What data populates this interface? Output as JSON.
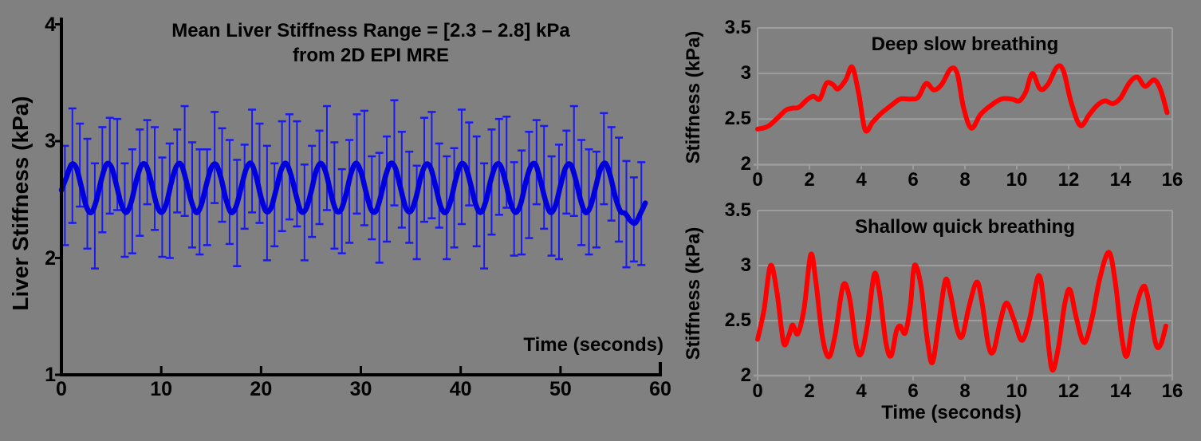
{
  "page": {
    "background": "#808080"
  },
  "colors": {
    "blue_line": "#0000dd",
    "blue_errorbar": "#1a1af0",
    "red_line": "#ff0000",
    "axis_black": "#000000",
    "grid_gray": "#9d9d9d",
    "text_black": "#000000"
  },
  "chart_data": [
    {
      "id": "liver-stiffness-mre",
      "type": "line",
      "title_line1": "Mean Liver Stiffness Range = [2.3 – 2.8] kPa",
      "title_line2": "from 2D EPI MRE",
      "ylabel": "Liver Stiffness (kPa)",
      "xlabel": "Time (seconds)",
      "xlim": [
        0,
        60
      ],
      "ylim": [
        1,
        4
      ],
      "xticks": [
        "0",
        "10",
        "20",
        "30",
        "40",
        "50",
        "60"
      ],
      "yticks": [
        "4",
        "3",
        "2",
        "1"
      ],
      "grid": false,
      "legend": "none",
      "series": [
        {
          "name": "mean liver stiffness",
          "style": "thick smooth line with error bars",
          "t_start": 0,
          "dt": 0.5,
          "values": [
            2.58,
            2.69,
            2.8,
            2.77,
            2.61,
            2.44,
            2.39,
            2.49,
            2.67,
            2.8,
            2.78,
            2.63,
            2.46,
            2.39,
            2.48,
            2.66,
            2.79,
            2.79,
            2.65,
            2.47,
            2.39,
            2.46,
            2.64,
            2.78,
            2.8,
            2.66,
            2.49,
            2.39,
            2.45,
            2.62,
            2.77,
            2.8,
            2.68,
            2.5,
            2.39,
            2.44,
            2.6,
            2.76,
            2.81,
            2.7,
            2.52,
            2.4,
            2.43,
            2.58,
            2.75,
            2.81,
            2.71,
            2.54,
            2.4,
            2.42,
            2.56,
            2.74,
            2.81,
            2.73,
            2.55,
            2.41,
            2.41,
            2.54,
            2.72,
            2.81,
            2.74,
            2.57,
            2.42,
            2.4,
            2.53,
            2.71,
            2.81,
            2.76,
            2.59,
            2.43,
            2.4,
            2.51,
            2.69,
            2.8,
            2.77,
            2.61,
            2.44,
            2.39,
            2.49,
            2.67,
            2.8,
            2.78,
            2.63,
            2.46,
            2.39,
            2.48,
            2.66,
            2.79,
            2.79,
            2.65,
            2.47,
            2.39,
            2.46,
            2.64,
            2.78,
            2.8,
            2.66,
            2.49,
            2.39,
            2.45,
            2.62,
            2.77,
            2.8,
            2.68,
            2.5,
            2.39,
            2.44,
            2.6,
            2.76,
            2.81,
            2.7,
            2.52,
            2.4,
            2.38,
            2.32,
            2.3,
            2.38,
            2.47
          ]
        }
      ],
      "error_bars": {
        "t_start": 0.35,
        "dt": 0.75,
        "mean": [
          2.51,
          2.76,
          2.77,
          2.52,
          2.39,
          2.58,
          2.8,
          2.71,
          2.46,
          2.42,
          2.66,
          2.81,
          2.65,
          2.41,
          2.46,
          2.72,
          2.8,
          2.57,
          2.39,
          2.53,
          2.77,
          2.76,
          2.5,
          2.4,
          2.6,
          2.8,
          2.7,
          2.44,
          2.43,
          2.67,
          2.81,
          2.63,
          2.4,
          2.48,
          2.74,
          2.79,
          2.55,
          2.39,
          2.54,
          2.78,
          2.74,
          2.49,
          2.4,
          2.62,
          2.81,
          2.68,
          2.43,
          2.44,
          2.69,
          2.81,
          2.61,
          2.4,
          2.49,
          2.75,
          2.78,
          2.54,
          2.39,
          2.56,
          2.79,
          2.73,
          2.47,
          2.41,
          2.64,
          2.81,
          2.66,
          2.42,
          2.45,
          2.71,
          2.8,
          2.59,
          2.39,
          2.51,
          2.76,
          2.77,
          2.52,
          2.39,
          2.32,
          2.35
        ],
        "up": [
          0.45,
          0.52,
          0.38,
          0.5,
          0.42,
          0.54,
          0.4,
          0.48,
          0.35,
          0.51,
          0.44,
          0.37,
          0.47,
          0.45,
          0.52,
          0.38,
          0.5,
          0.42,
          0.54,
          0.4,
          0.48,
          0.35,
          0.51,
          0.44,
          0.37,
          0.47,
          0.45,
          0.52,
          0.38,
          0.5,
          0.42,
          0.54,
          0.4,
          0.48,
          0.35,
          0.51,
          0.44,
          0.37,
          0.47,
          0.45,
          0.52,
          0.38,
          0.5,
          0.42,
          0.54,
          0.4,
          0.48,
          0.35,
          0.51,
          0.44,
          0.37,
          0.47,
          0.45,
          0.52,
          0.38,
          0.5,
          0.42,
          0.54,
          0.4,
          0.48,
          0.35,
          0.51,
          0.44,
          0.37,
          0.47,
          0.45,
          0.52,
          0.38,
          0.5,
          0.42,
          0.54,
          0.4,
          0.48,
          0.35,
          0.51,
          0.44,
          0.37,
          0.47
        ],
        "dn": [
          0.4,
          0.46,
          0.33,
          0.44,
          0.48,
          0.36,
          0.42,
          0.3,
          0.45,
          0.38,
          0.47,
          0.35,
          0.41,
          0.4,
          0.46,
          0.33,
          0.44,
          0.48,
          0.36,
          0.42,
          0.3,
          0.45,
          0.38,
          0.47,
          0.35,
          0.41,
          0.4,
          0.46,
          0.33,
          0.44,
          0.48,
          0.36,
          0.42,
          0.3,
          0.45,
          0.38,
          0.47,
          0.35,
          0.41,
          0.4,
          0.46,
          0.33,
          0.44,
          0.48,
          0.36,
          0.42,
          0.3,
          0.45,
          0.38,
          0.47,
          0.35,
          0.41,
          0.4,
          0.46,
          0.33,
          0.44,
          0.48,
          0.36,
          0.42,
          0.3,
          0.45,
          0.38,
          0.47,
          0.35,
          0.41,
          0.4,
          0.46,
          0.33,
          0.44,
          0.48,
          0.36,
          0.42,
          0.3,
          0.45,
          0.38,
          0.47,
          0.35,
          0.41
        ]
      }
    },
    {
      "id": "deep-slow-breathing",
      "type": "line",
      "title": "Deep slow breathing",
      "ylabel": "Stiffness (kPa)",
      "xlim": [
        0,
        16
      ],
      "ylim": [
        2,
        3.5
      ],
      "xticks": [
        "0",
        "2",
        "4",
        "6",
        "8",
        "10",
        "12",
        "14",
        "16"
      ],
      "yticks": [
        "3.5",
        "3",
        "2.5",
        "2"
      ],
      "grid": true,
      "legend": "none",
      "series": [
        {
          "name": "stiffness during deep slow breathing",
          "x": [
            0,
            0.4,
            0.8,
            1.1,
            1.35,
            1.6,
            1.9,
            2.15,
            2.4,
            2.65,
            2.9,
            3.1,
            3.4,
            3.65,
            3.9,
            4.15,
            4.45,
            4.8,
            5.2,
            5.5,
            5.9,
            6.2,
            6.5,
            6.8,
            7.1,
            7.45,
            7.7,
            7.95,
            8.25,
            8.6,
            9.0,
            9.4,
            9.8,
            10.1,
            10.35,
            10.6,
            10.9,
            11.2,
            11.55,
            11.8,
            12.1,
            12.45,
            12.8,
            13.1,
            13.4,
            13.7,
            14.0,
            14.35,
            14.65,
            14.95,
            15.3,
            15.55,
            15.8
          ],
          "y": [
            2.39,
            2.42,
            2.52,
            2.6,
            2.62,
            2.63,
            2.71,
            2.75,
            2.72,
            2.89,
            2.88,
            2.83,
            2.93,
            3.07,
            2.78,
            2.38,
            2.47,
            2.57,
            2.66,
            2.72,
            2.72,
            2.74,
            2.89,
            2.82,
            2.88,
            3.05,
            3.0,
            2.62,
            2.4,
            2.55,
            2.65,
            2.72,
            2.72,
            2.7,
            2.8,
            3.0,
            2.83,
            2.88,
            3.07,
            3.03,
            2.68,
            2.43,
            2.55,
            2.65,
            2.7,
            2.67,
            2.73,
            2.9,
            2.96,
            2.86,
            2.93,
            2.82,
            2.57
          ]
        }
      ]
    },
    {
      "id": "shallow-quick-breathing",
      "type": "line",
      "title": "Shallow quick breathing",
      "ylabel": "Stiffness (kPa)",
      "xlabel": "Time (seconds)",
      "xlim": [
        0,
        16
      ],
      "ylim": [
        2,
        3.5
      ],
      "xticks": [
        "0",
        "2",
        "4",
        "6",
        "8",
        "10",
        "12",
        "14",
        "16"
      ],
      "yticks": [
        "3.5",
        "3",
        "2.5",
        "2"
      ],
      "grid": true,
      "legend": "none",
      "series": [
        {
          "name": "stiffness during shallow quick breathing",
          "x": [
            0,
            0.25,
            0.5,
            0.75,
            1.0,
            1.2,
            1.35,
            1.55,
            1.8,
            2.05,
            2.25,
            2.5,
            2.75,
            3.0,
            3.3,
            3.55,
            3.8,
            4.0,
            4.25,
            4.5,
            4.7,
            4.95,
            5.15,
            5.35,
            5.5,
            5.7,
            5.9,
            6.05,
            6.3,
            6.55,
            6.75,
            7.0,
            7.25,
            7.45,
            7.7,
            7.9,
            8.15,
            8.45,
            8.65,
            8.9,
            9.1,
            9.35,
            9.6,
            9.9,
            10.2,
            10.5,
            10.85,
            11.1,
            11.35,
            11.6,
            11.85,
            12.05,
            12.3,
            12.6,
            12.9,
            13.2,
            13.55,
            13.8,
            14.05,
            14.25,
            14.5,
            14.85,
            15.05,
            15.35,
            15.55,
            15.75
          ],
          "y": [
            2.33,
            2.6,
            3.0,
            2.75,
            2.3,
            2.36,
            2.46,
            2.38,
            2.62,
            3.1,
            2.85,
            2.35,
            2.17,
            2.38,
            2.82,
            2.7,
            2.28,
            2.2,
            2.48,
            2.92,
            2.76,
            2.3,
            2.18,
            2.4,
            2.45,
            2.39,
            2.65,
            3.0,
            2.82,
            2.32,
            2.12,
            2.5,
            2.87,
            2.73,
            2.42,
            2.36,
            2.62,
            2.85,
            2.68,
            2.28,
            2.22,
            2.48,
            2.66,
            2.5,
            2.32,
            2.52,
            2.91,
            2.55,
            2.06,
            2.25,
            2.65,
            2.78,
            2.52,
            2.3,
            2.52,
            2.88,
            3.12,
            2.85,
            2.35,
            2.18,
            2.52,
            2.8,
            2.72,
            2.3,
            2.28,
            2.45
          ]
        }
      ]
    }
  ]
}
